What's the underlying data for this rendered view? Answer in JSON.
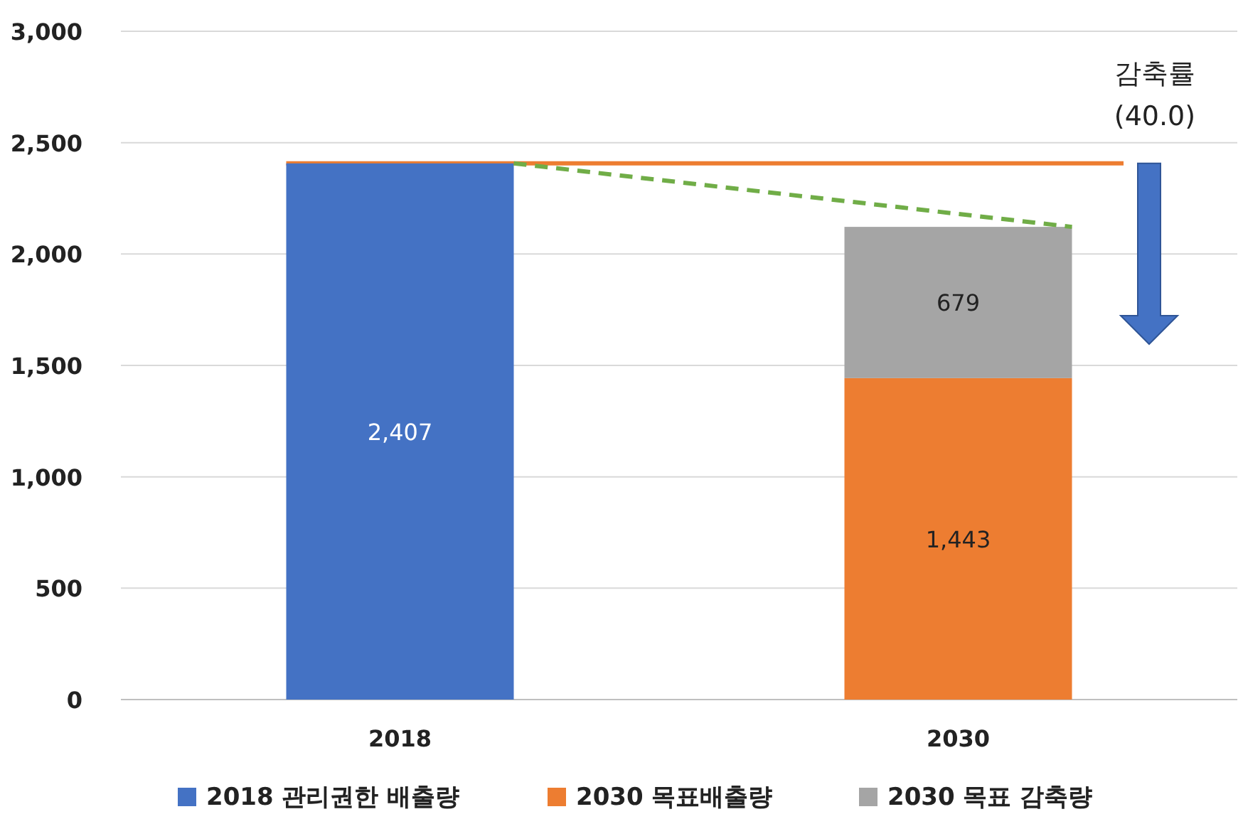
{
  "chart_data": {
    "type": "bar",
    "stacked": true,
    "categories": [
      "2018",
      "2030"
    ],
    "series": [
      {
        "name": "2018 관리권한 배출량",
        "color": "#4472c4",
        "values": [
          2407,
          null
        ],
        "value_labels": [
          "2,407",
          null
        ]
      },
      {
        "name": "2030 목표배출량",
        "color": "#ed7d31",
        "values": [
          null,
          1443
        ],
        "value_labels": [
          null,
          "1,443"
        ]
      },
      {
        "name": "2030 목표 감축량",
        "color": "#a5a5a5",
        "values": [
          null,
          679
        ],
        "value_labels": [
          null,
          "679"
        ]
      },
      {
        "type": "line",
        "color": "#70ad47",
        "line_style": "dashed",
        "values": [
          2407,
          2122
        ]
      }
    ],
    "ylim": [
      0,
      3000
    ],
    "yticks": [
      {
        "value": 0,
        "label": "0"
      },
      {
        "value": 500,
        "label": "500"
      },
      {
        "value": 1000,
        "label": "1,000"
      },
      {
        "value": 1500,
        "label": "1,500"
      },
      {
        "value": 2000,
        "label": "2,000"
      },
      {
        "value": 2500,
        "label": "2,500"
      },
      {
        "value": 3000,
        "label": "3,000"
      }
    ],
    "grid": "y",
    "legend": "bottom",
    "ref_lines": [
      {
        "axis": "y",
        "value": 2407,
        "color": "#ed7d31"
      }
    ],
    "annotations": [
      "감축률",
      "(40.0)"
    ]
  }
}
